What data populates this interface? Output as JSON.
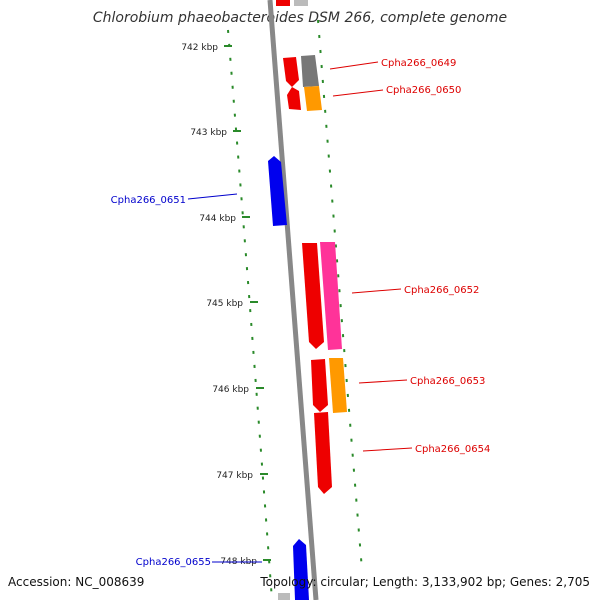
{
  "title": "Chlorobium phaeobacteroides DSM 266, complete genome",
  "footer": {
    "accession": "Accession: NC_008639",
    "summary": "Topology: circular; Length: 3,133,902 bp; Genes: 2,705"
  },
  "ticks": [
    "742 kbp",
    "743 kbp",
    "744 kbp",
    "745 kbp",
    "746 kbp",
    "747 kbp",
    "748 kbp"
  ],
  "gene_labels": [
    {
      "id": "0649",
      "text": "Cpha266_0649",
      "color": "#dd0000"
    },
    {
      "id": "0650",
      "text": "Cpha266_0650",
      "color": "#dd0000"
    },
    {
      "id": "0651",
      "text": "Cpha266_0651",
      "color": "#0000cc"
    },
    {
      "id": "0652",
      "text": "Cpha266_0652",
      "color": "#dd0000"
    },
    {
      "id": "0653",
      "text": "Cpha266_0653",
      "color": "#dd0000"
    },
    {
      "id": "0654",
      "text": "Cpha266_0654",
      "color": "#dd0000"
    },
    {
      "id": "0655",
      "text": "Cpha266_0655",
      "color": "#0000cc"
    }
  ],
  "colors": {
    "backbone": "#888888",
    "tick": "#2a8a2a",
    "forward_strand": "#ee0000",
    "reverse_strand": "#0000ee",
    "cog_gray": "#777777",
    "cog_orange": "#ff9900",
    "cog_pink": "#ff3399"
  }
}
